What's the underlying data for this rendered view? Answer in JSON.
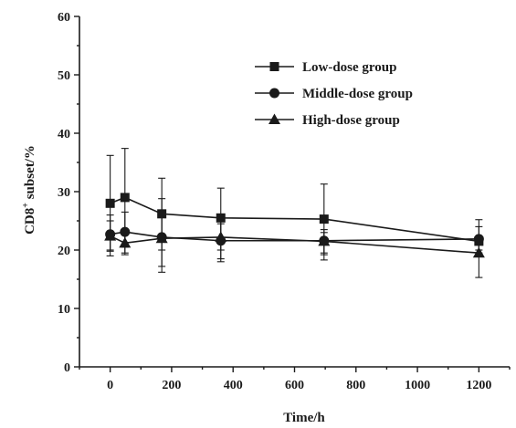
{
  "chart_data": {
    "type": "line",
    "xlabel": "Time/h",
    "ylabel_main": "CD8",
    "ylabel_sup": "+",
    "ylabel_rest": " subset/%",
    "xlim": [
      -100,
      1300
    ],
    "ylim": [
      0,
      60
    ],
    "xticks": [
      0,
      200,
      400,
      600,
      800,
      1000,
      1200
    ],
    "yticks": [
      0,
      10,
      20,
      30,
      40,
      50,
      60
    ],
    "grid": false,
    "legend_position": "top-right",
    "series": [
      {
        "name": "Low-dose group",
        "marker": "square",
        "x": [
          0,
          48,
          168,
          360,
          696,
          1200
        ],
        "y": [
          28.0,
          29.0,
          26.2,
          25.5,
          25.3,
          21.5
        ],
        "err_upper": [
          36.2,
          37.4,
          32.3,
          30.6,
          31.3,
          25.2
        ],
        "err_lower": [
          20.0,
          20.5,
          20.0,
          20.0,
          19.2,
          19.5
        ]
      },
      {
        "name": "Middle-dose group",
        "marker": "circle",
        "x": [
          0,
          48,
          168,
          360,
          696,
          1200
        ],
        "y": [
          22.7,
          23.1,
          22.2,
          21.6,
          21.6,
          21.9
        ],
        "err_upper": [
          26.0,
          26.5,
          28.8,
          25.8,
          23.5,
          24.0
        ],
        "err_lower": [
          19.0,
          19.2,
          16.2,
          18.0,
          19.5,
          20.0
        ]
      },
      {
        "name": "High-dose group",
        "marker": "triangle",
        "x": [
          0,
          48,
          168,
          360,
          696,
          1200
        ],
        "y": [
          22.4,
          21.2,
          22.0,
          22.2,
          21.5,
          19.5
        ],
        "err_upper": [
          25.0,
          23.5,
          26.5,
          24.5,
          23.0,
          22.0
        ],
        "err_lower": [
          19.8,
          19.5,
          17.2,
          18.5,
          18.3,
          15.3
        ]
      }
    ]
  }
}
